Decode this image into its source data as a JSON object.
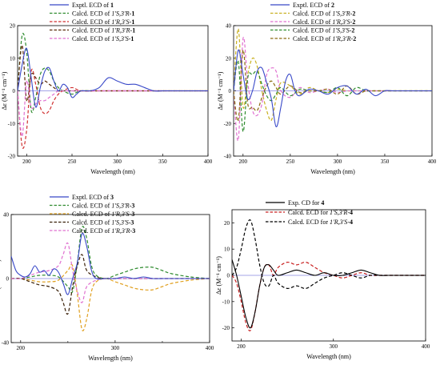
{
  "chart_data": [
    {
      "type": "line",
      "panel": "1",
      "xlabel": "Wavelength (nm)",
      "ylabel": "Δε (M⁻¹ cm⁻¹)",
      "xlim": [
        190,
        400
      ],
      "ylim": [
        -20,
        20
      ],
      "xticks": [
        "200",
        "250",
        "300",
        "350",
        "400"
      ],
      "yticks": [
        "20",
        "10",
        "0",
        "-10",
        "-20"
      ],
      "grid": false,
      "legend_position": "top-right",
      "series": [
        {
          "name": "Exptl. ECD of 1",
          "color": "#3848c8",
          "dash": "solid",
          "x": [
            190,
            195,
            200,
            205,
            210,
            215,
            220,
            225,
            230,
            235,
            240,
            245,
            250,
            255,
            260,
            270,
            280,
            290,
            300,
            310,
            320,
            330,
            340,
            350,
            360,
            400
          ],
          "y": [
            0,
            8,
            13,
            4,
            -5,
            1,
            6,
            7,
            3,
            0,
            2,
            1,
            -2,
            -1,
            0,
            0,
            1,
            4,
            3,
            2,
            2,
            1,
            0,
            0,
            0,
            0
          ]
        },
        {
          "name": "Calcd. ECD of 1'S,3'R-1",
          "color": "#2e8b2e",
          "dash": "dash",
          "x": [
            190,
            195,
            200,
            205,
            210,
            215,
            220,
            225,
            230,
            235,
            240,
            250,
            260,
            280,
            300,
            350,
            400
          ],
          "y": [
            0,
            17,
            12,
            -6,
            -2,
            5,
            7,
            6,
            3,
            1,
            0,
            -1,
            0,
            0,
            0,
            0,
            0
          ]
        },
        {
          "name": "Calcd. ECD of 1'R,3'S-1",
          "color": "#d03030",
          "dash": "dash",
          "x": [
            190,
            195,
            200,
            205,
            210,
            215,
            220,
            225,
            230,
            235,
            240,
            250,
            260,
            280,
            300,
            350,
            400
          ],
          "y": [
            0,
            -17,
            -12,
            6,
            2,
            -5,
            -7,
            -6,
            -3,
            -1,
            0,
            1,
            0,
            0,
            0,
            0,
            0
          ]
        },
        {
          "name": "Calcd. ECD of 1'R,3'R-1",
          "color": "#5a2a0a",
          "dash": "dash",
          "x": [
            190,
            195,
            200,
            205,
            210,
            215,
            220,
            225,
            230,
            235,
            240,
            250,
            260,
            280,
            300,
            350,
            400
          ],
          "y": [
            0,
            14,
            -3,
            5,
            4,
            2,
            3,
            2,
            1,
            0,
            0,
            0,
            0,
            0,
            0,
            0,
            0
          ]
        },
        {
          "name": "Calcd. ECD of 1'S,3'S-1",
          "color": "#e070d0",
          "dash": "dash",
          "x": [
            190,
            195,
            200,
            205,
            210,
            215,
            220,
            225,
            230,
            235,
            240,
            250,
            260,
            280,
            300,
            350,
            400
          ],
          "y": [
            0,
            -14,
            3,
            -5,
            -4,
            -3,
            -3,
            -2,
            -1,
            0,
            0,
            0,
            0,
            0,
            0,
            0,
            0
          ]
        }
      ]
    },
    {
      "type": "line",
      "panel": "2",
      "xlabel": "Wavelength (nm)",
      "ylabel": "Δε (M⁻¹ cm⁻¹)",
      "xlim": [
        190,
        400
      ],
      "ylim": [
        -40,
        40
      ],
      "xticks": [
        "200",
        "250",
        "300",
        "350",
        "400"
      ],
      "yticks": [
        "40",
        "20",
        "0",
        "-20",
        "-40"
      ],
      "grid": false,
      "legend_position": "top-right",
      "series": [
        {
          "name": "Exptl. ECD of 2",
          "color": "#3848c8",
          "dash": "solid",
          "x": [
            190,
            195,
            200,
            205,
            210,
            215,
            220,
            225,
            230,
            235,
            240,
            245,
            250,
            255,
            260,
            270,
            280,
            290,
            300,
            310,
            320,
            330,
            340,
            350,
            360,
            400
          ],
          "y": [
            0,
            25,
            10,
            -5,
            0,
            12,
            14,
            5,
            -5,
            -22,
            -10,
            6,
            10,
            0,
            -3,
            1,
            0,
            -2,
            2,
            3,
            -2,
            1,
            -3,
            0,
            0,
            0
          ]
        },
        {
          "name": "Calcd. ECD of 1'S,3'R-2",
          "color": "#c8b020",
          "dash": "dash",
          "x": [
            190,
            195,
            200,
            205,
            210,
            215,
            220,
            225,
            230,
            235,
            240,
            250,
            260,
            270,
            280,
            290,
            300,
            310,
            320,
            330,
            340,
            400
          ],
          "y": [
            0,
            38,
            -10,
            10,
            20,
            15,
            0,
            -12,
            -18,
            -5,
            5,
            3,
            -2,
            2,
            0,
            -1,
            1,
            0,
            0,
            0,
            0,
            0
          ]
        },
        {
          "name": "Calcd. ECD of 1'R,3'S-2",
          "color": "#e070d0",
          "dash": "dash",
          "x": [
            190,
            195,
            200,
            205,
            210,
            215,
            220,
            225,
            230,
            235,
            240,
            250,
            260,
            270,
            280,
            290,
            300,
            310,
            320,
            330,
            340,
            400
          ],
          "y": [
            0,
            -30,
            32,
            5,
            -12,
            -15,
            -8,
            10,
            14,
            12,
            0,
            -4,
            2,
            -1,
            0,
            1,
            -1,
            0,
            0,
            0,
            0,
            0
          ]
        },
        {
          "name": "Calcd. ECD of 1'S,3'S-2",
          "color": "#2e8b2e",
          "dash": "dash",
          "x": [
            190,
            195,
            200,
            205,
            210,
            215,
            220,
            225,
            230,
            235,
            240,
            250,
            260,
            270,
            280,
            290,
            300,
            310,
            320,
            330,
            340,
            400
          ],
          "y": [
            0,
            18,
            -25,
            8,
            10,
            12,
            4,
            -3,
            -6,
            -2,
            2,
            -3,
            1,
            0,
            0,
            -1,
            2,
            -3,
            2,
            0,
            0,
            0
          ]
        },
        {
          "name": "Calcd. ECD of 1'R,3'R-2",
          "color": "#8b6a10",
          "dash": "dash",
          "x": [
            190,
            195,
            200,
            205,
            210,
            215,
            220,
            225,
            230,
            235,
            240,
            250,
            260,
            270,
            280,
            290,
            300,
            310,
            320,
            330,
            340,
            400
          ],
          "y": [
            0,
            -18,
            25,
            -8,
            -10,
            -12,
            -4,
            3,
            6,
            2,
            -2,
            3,
            -1,
            0,
            0,
            1,
            -2,
            3,
            -2,
            0,
            0,
            0
          ]
        }
      ]
    },
    {
      "type": "line",
      "panel": "3",
      "xlabel": "Wavelength (nm)",
      "ylabel": "Δε (M⁻¹ cm⁻¹)",
      "xlim": [
        190,
        400
      ],
      "ylim": [
        -40,
        40
      ],
      "xticks": [
        "200",
        "300",
        "400"
      ],
      "yticks": [
        "40",
        "0",
        "-40"
      ],
      "extra_xticks": [
        "250",
        "350"
      ],
      "grid": false,
      "legend_position": "top-right",
      "series": [
        {
          "name": "Exptl. ECD of 3",
          "color": "#3848c8",
          "dash": "solid",
          "x": [
            190,
            195,
            200,
            205,
            210,
            215,
            220,
            225,
            230,
            235,
            240,
            245,
            250,
            255,
            260,
            265,
            270,
            275,
            280,
            290,
            300,
            310,
            320,
            330,
            340,
            350,
            360,
            400
          ],
          "y": [
            14,
            5,
            2,
            1,
            3,
            8,
            4,
            5,
            2,
            6,
            4,
            -3,
            -10,
            0,
            10,
            28,
            20,
            5,
            0,
            0,
            0,
            1,
            0,
            1,
            0,
            0,
            0,
            0
          ]
        },
        {
          "name": "Calcd. ECD of 1'S,3'R-3",
          "color": "#2e8b2e",
          "dash": "dash",
          "x": [
            190,
            200,
            210,
            220,
            230,
            240,
            250,
            255,
            260,
            265,
            270,
            275,
            280,
            290,
            300,
            310,
            320,
            330,
            340,
            350,
            360,
            380,
            400
          ],
          "y": [
            0,
            0,
            1,
            2,
            2,
            1,
            -5,
            -8,
            10,
            32,
            25,
            8,
            2,
            0,
            2,
            4,
            6,
            7,
            7,
            5,
            3,
            1,
            0
          ]
        },
        {
          "name": "Calcd. ECD of 1'R,3'S-3",
          "color": "#e0a020",
          "dash": "dash",
          "x": [
            190,
            200,
            210,
            220,
            230,
            240,
            250,
            255,
            260,
            265,
            270,
            275,
            280,
            290,
            300,
            310,
            320,
            330,
            340,
            350,
            360,
            380,
            400
          ],
          "y": [
            0,
            0,
            -1,
            -2,
            -2,
            -1,
            5,
            8,
            -10,
            -32,
            -25,
            -8,
            -2,
            0,
            -2,
            -4,
            -6,
            -7,
            -7,
            -5,
            -3,
            -1,
            0
          ]
        },
        {
          "name": "Calcd. ECD of 1'S,3'S-3",
          "color": "#3a2008",
          "dash": "dash",
          "x": [
            190,
            200,
            210,
            220,
            230,
            240,
            245,
            250,
            255,
            260,
            265,
            270,
            280,
            290,
            300,
            320,
            340,
            360,
            400
          ],
          "y": [
            0,
            0,
            -2,
            -4,
            -5,
            -8,
            -15,
            -22,
            -5,
            8,
            15,
            5,
            1,
            0,
            0,
            0,
            0,
            0,
            0
          ]
        },
        {
          "name": "Calcd. ECD of 1'R,3'R-3",
          "color": "#e070d0",
          "dash": "dash",
          "x": [
            190,
            200,
            210,
            220,
            230,
            240,
            245,
            250,
            255,
            260,
            265,
            270,
            280,
            290,
            300,
            320,
            340,
            360,
            400
          ],
          "y": [
            0,
            0,
            2,
            4,
            5,
            8,
            15,
            22,
            5,
            -8,
            -15,
            -5,
            -1,
            0,
            0,
            0,
            0,
            0,
            0
          ]
        }
      ]
    },
    {
      "type": "line",
      "panel": "4",
      "xlabel": "Wavelength (nm)",
      "ylabel": "Δε (M⁻¹ cm⁻¹)",
      "xlim": [
        190,
        400
      ],
      "ylim": [
        -25,
        25
      ],
      "xticks": [
        "200",
        "300",
        "400"
      ],
      "yticks": [
        "20",
        "10",
        "0",
        "-10",
        "-20"
      ],
      "grid": false,
      "legend_position": "top-right",
      "series": [
        {
          "name": "Exp. CD for 4",
          "color": "#000000",
          "dash": "solid",
          "x": [
            190,
            195,
            200,
            205,
            210,
            215,
            220,
            225,
            230,
            235,
            240,
            250,
            260,
            270,
            280,
            290,
            300,
            310,
            320,
            330,
            340,
            350,
            360,
            380,
            400
          ],
          "y": [
            6,
            0,
            -8,
            -16,
            -20,
            -14,
            -4,
            3,
            4,
            2,
            0,
            1,
            2,
            1,
            0,
            1,
            0,
            0,
            1,
            2,
            1,
            0,
            0,
            0,
            0
          ]
        },
        {
          "name": "Calcd. ECD for 1'S,3'R-4",
          "color": "#c82020",
          "dash": "dash",
          "x": [
            190,
            195,
            200,
            205,
            210,
            215,
            220,
            225,
            230,
            235,
            240,
            250,
            260,
            270,
            280,
            290,
            300,
            310,
            320,
            330,
            340,
            350,
            360,
            380,
            400
          ],
          "y": [
            0,
            -3,
            -10,
            -18,
            -21,
            -14,
            -4,
            3,
            4,
            0,
            3,
            5,
            4,
            5,
            3,
            1,
            0,
            -1,
            0,
            1,
            0,
            0,
            0,
            0,
            0
          ]
        },
        {
          "name": "Calcd. ECD for 1'R,3'S-4",
          "color": "#000000",
          "dash": "dash",
          "x": [
            190,
            195,
            200,
            205,
            210,
            215,
            220,
            225,
            230,
            235,
            240,
            250,
            260,
            270,
            280,
            290,
            300,
            310,
            320,
            330,
            340,
            350,
            360,
            380,
            400
          ],
          "y": [
            0,
            3,
            10,
            18,
            21,
            14,
            4,
            -3,
            -4,
            0,
            -3,
            -5,
            -4,
            -5,
            -3,
            -1,
            0,
            1,
            0,
            -1,
            0,
            0,
            0,
            0,
            0
          ]
        }
      ]
    }
  ]
}
